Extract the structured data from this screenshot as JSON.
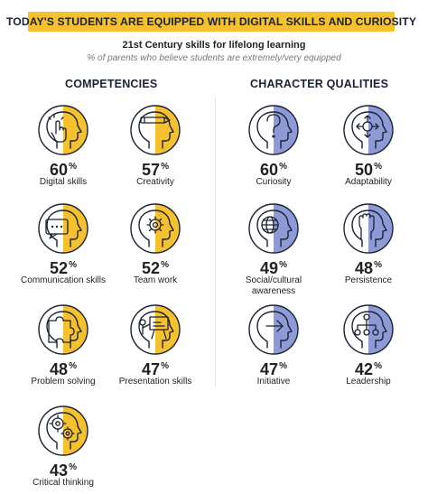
{
  "banner": "TODAY'S STUDENTS ARE EQUIPPED WITH DIGITAL SKILLS AND CURIOSITY",
  "subtitle": "21st Century skills for lifelong learning",
  "note": "% of parents who believe students are extremely/very equipped",
  "colors": {
    "banner": "#f5c12e",
    "competency_fill": "#f5c12e",
    "character_fill": "#8d9ad6",
    "outline": "#1b2233"
  },
  "competencies": {
    "title": "COMPETENCIES",
    "items": [
      {
        "label": "Digital skills",
        "value": "60",
        "icon": "hand-tapping-icon"
      },
      {
        "label": "Creativity",
        "value": "57",
        "icon": "pencil-icon"
      },
      {
        "label": "Communication skills",
        "value": "52",
        "icon": "speech-bubble-icon"
      },
      {
        "label": "Team work",
        "value": "52",
        "icon": "gear-icon"
      },
      {
        "label": "Problem solving",
        "value": "48",
        "icon": "puzzle-piece-icon"
      },
      {
        "label": "Presentation skills",
        "value": "47",
        "icon": "presentation-board-icon"
      },
      {
        "label": "Critical thinking",
        "value": "43",
        "icon": "gears-icon"
      }
    ]
  },
  "character": {
    "title": "CHARACTER QUALITIES",
    "items": [
      {
        "label": "Curiosity",
        "value": "60",
        "icon": "question-mark-icon"
      },
      {
        "label": "Adaptability",
        "value": "50",
        "icon": "four-way-arrows-icon"
      },
      {
        "label": "Social/cultural awareness",
        "value": "49",
        "icon": "globe-icon"
      },
      {
        "label": "Persistence",
        "value": "48",
        "icon": "raised-fist-icon"
      },
      {
        "label": "Initiative",
        "value": "47",
        "icon": "arrow-right-icon"
      },
      {
        "label": "Leadership",
        "value": "42",
        "icon": "org-chart-icon"
      }
    ]
  },
  "percent_sign": "%"
}
